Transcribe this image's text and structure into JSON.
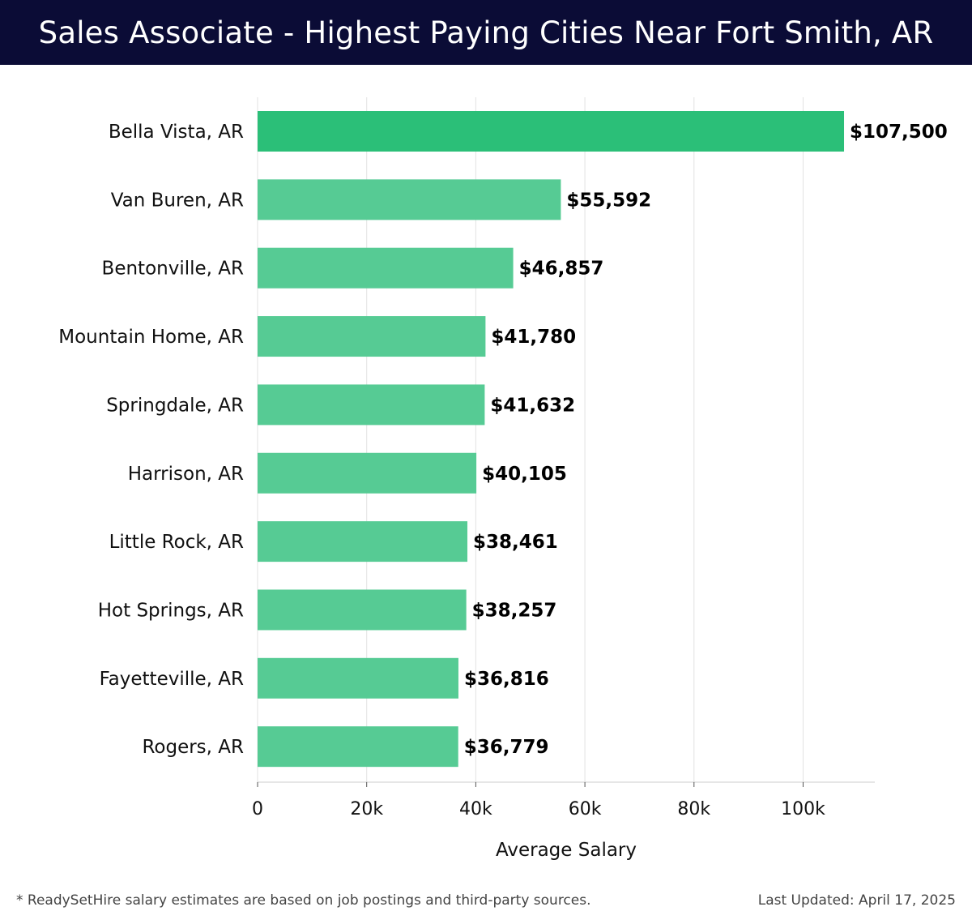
{
  "header": {
    "title": "Sales Associate - Highest Paying Cities Near Fort Smith, AR"
  },
  "chart_data": {
    "type": "bar",
    "orientation": "horizontal",
    "title": "Sales Associate - Highest Paying Cities Near Fort Smith, AR",
    "xlabel": "Average Salary",
    "ylabel": "",
    "xlim": [
      0,
      113000
    ],
    "xticks": [
      0,
      20000,
      40000,
      60000,
      80000,
      100000
    ],
    "xtick_labels": [
      "0",
      "20k",
      "40k",
      "60k",
      "80k",
      "100k"
    ],
    "grid": "vertical",
    "categories": [
      "Bella Vista, AR",
      "Van Buren, AR",
      "Bentonville, AR",
      "Mountain Home, AR",
      "Springdale, AR",
      "Harrison, AR",
      "Little Rock, AR",
      "Hot Springs, AR",
      "Fayetteville, AR",
      "Rogers, AR"
    ],
    "values": [
      107500,
      55592,
      46857,
      41780,
      41632,
      40105,
      38461,
      38257,
      36816,
      36779
    ],
    "value_labels": [
      "$107,500",
      "$55,592",
      "$46,857",
      "$41,780",
      "$41,632",
      "$40,105",
      "$38,461",
      "$38,257",
      "$36,816",
      "$36,779"
    ],
    "colors": {
      "highlight": "#2bbf78",
      "bar": "#56cb94",
      "grid": "#e2e2e2",
      "axis": "#cccccc"
    }
  },
  "footer": {
    "note": "* ReadySetHire salary estimates are based on job postings and third-party sources.",
    "updated": "Last Updated: April 17, 2025"
  }
}
